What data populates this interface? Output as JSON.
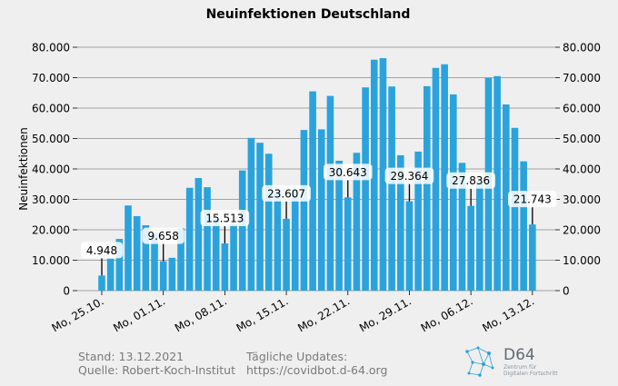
{
  "chart_data": {
    "type": "bar",
    "title": "Neuinfektionen Deutschland",
    "ylabel": "Neuinfektionen",
    "xlabel": "",
    "ylim": [
      0,
      80000
    ],
    "yticks": [
      0,
      10000,
      20000,
      30000,
      40000,
      50000,
      60000,
      70000,
      80000
    ],
    "ytick_labels": [
      "0",
      "10.000",
      "20.000",
      "30.000",
      "40.000",
      "50.000",
      "60.000",
      "70.000",
      "80.000"
    ],
    "xtick_labels": [
      "Mo, 25.10.",
      "Mo, 01.11.",
      "Mo, 08.11.",
      "Mo, 15.11.",
      "Mo, 22.11.",
      "Mo, 29.11.",
      "Mo, 06.12.",
      "Mo, 13.12."
    ],
    "xtick_indices": [
      0,
      7,
      14,
      21,
      28,
      35,
      42,
      49
    ],
    "bar_color": "#2aa3dc",
    "dates": [
      "25.10.",
      "26.10.",
      "27.10.",
      "28.10.",
      "29.10.",
      "30.10.",
      "31.10.",
      "01.11.",
      "02.11.",
      "03.11.",
      "04.11.",
      "05.11.",
      "06.11.",
      "07.11.",
      "08.11.",
      "09.11.",
      "10.11.",
      "11.11.",
      "12.11.",
      "13.11.",
      "14.11.",
      "15.11.",
      "16.11.",
      "17.11.",
      "18.11.",
      "19.11.",
      "20.11.",
      "21.11.",
      "22.11.",
      "23.11.",
      "24.11.",
      "25.11.",
      "26.11.",
      "27.11.",
      "28.11.",
      "29.11.",
      "30.11.",
      "01.12.",
      "02.12.",
      "03.12.",
      "04.12.",
      "05.12.",
      "06.12.",
      "07.12.",
      "08.12.",
      "09.12.",
      "10.12.",
      "11.12.",
      "12.12.",
      "13.12."
    ],
    "values": [
      4948,
      10500,
      17000,
      28000,
      24500,
      21500,
      19000,
      9658,
      10800,
      20500,
      33800,
      37000,
      34000,
      23500,
      15513,
      21800,
      39500,
      50200,
      48600,
      45000,
      33500,
      23607,
      33000,
      52800,
      65500,
      53000,
      64000,
      42700,
      30643,
      45300,
      66800,
      75900,
      76400,
      67100,
      44500,
      29364,
      45700,
      67200,
      73200,
      74400,
      64500,
      42000,
      27836,
      36000,
      69900,
      70500,
      61200,
      53500,
      42500,
      21743
    ],
    "annotations": [
      {
        "index": 0,
        "label": "4.948"
      },
      {
        "index": 7,
        "label": "9.658"
      },
      {
        "index": 14,
        "label": "15.513"
      },
      {
        "index": 21,
        "label": "23.607"
      },
      {
        "index": 28,
        "label": "30.643"
      },
      {
        "index": 35,
        "label": "29.364"
      },
      {
        "index": 42,
        "label": "27.836"
      },
      {
        "index": 49,
        "label": "21.743"
      }
    ]
  },
  "footer": {
    "stand": "Stand: 13.12.2021",
    "quelle": "Quelle: Robert-Koch-Institut",
    "updates_label": "Tägliche Updates:",
    "updates_url": "https://covidbot.d-64.org"
  },
  "logo": {
    "name": "D64",
    "tagline_1": "Zentrum für",
    "tagline_2": "Digitalen Fortschritt"
  }
}
